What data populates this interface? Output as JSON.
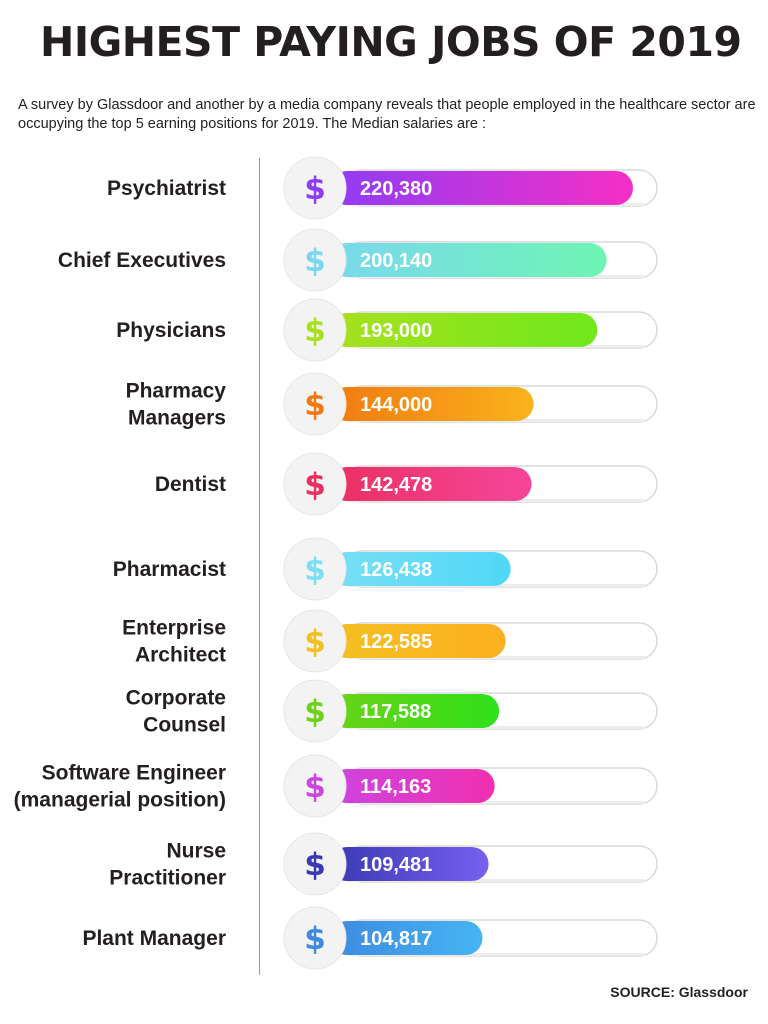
{
  "title": "HIGHEST PAYING JOBS OF 2019",
  "subtitle": "A survey by Glassdoor and another by a media company reveals that people employed in the healthcare sector are occupying the top 5 earning positions for 2019. The Median salaries are :",
  "source": "SOURCE: Glassdoor",
  "icon": "dollar-icon",
  "icon_glyph": "$",
  "chart_data": {
    "type": "bar",
    "orientation": "horizontal",
    "title": "HIGHEST PAYING JOBS OF 2019",
    "categories": [
      [
        "Psychiatrist"
      ],
      [
        "Chief Executives"
      ],
      [
        "Physicians"
      ],
      [
        "Pharmacy",
        "Managers"
      ],
      [
        "Dentist"
      ],
      [
        "Pharmacist"
      ],
      [
        "Enterprise",
        "Architect"
      ],
      [
        "Corporate",
        "Counsel"
      ],
      [
        "Software Engineer",
        "(managerial position)"
      ],
      [
        "Nurse",
        "Practitioner"
      ],
      [
        "Plant Manager"
      ]
    ],
    "values": [
      220380,
      200140,
      193000,
      144000,
      142478,
      126438,
      122585,
      117588,
      114163,
      109481,
      104817
    ],
    "value_labels": [
      "220,380",
      "200,140",
      "193,000",
      "144,000",
      "142,478",
      "126,438",
      "122,585",
      "117,588",
      "114,163",
      "109,481",
      "104,817"
    ],
    "colors": [
      [
        "#8f3cf5",
        "#f52fc6"
      ],
      [
        "#7ad8ee",
        "#6ef5b4"
      ],
      [
        "#a8e01e",
        "#6fe81c"
      ],
      [
        "#f17a10",
        "#f9b31c"
      ],
      [
        "#ea2f62",
        "#f6469a"
      ],
      [
        "#7adff3",
        "#4fd8f7"
      ],
      [
        "#f4c020",
        "#fdb020"
      ],
      [
        "#6bd216",
        "#2ee01a"
      ],
      [
        "#cd45e0",
        "#f12fb0"
      ],
      [
        "#3a39b4",
        "#7760ef"
      ],
      [
        "#3e8ae0",
        "#45b5f3"
      ]
    ],
    "xlim": [
      0,
      250000
    ],
    "grid": false,
    "legend": "none"
  }
}
